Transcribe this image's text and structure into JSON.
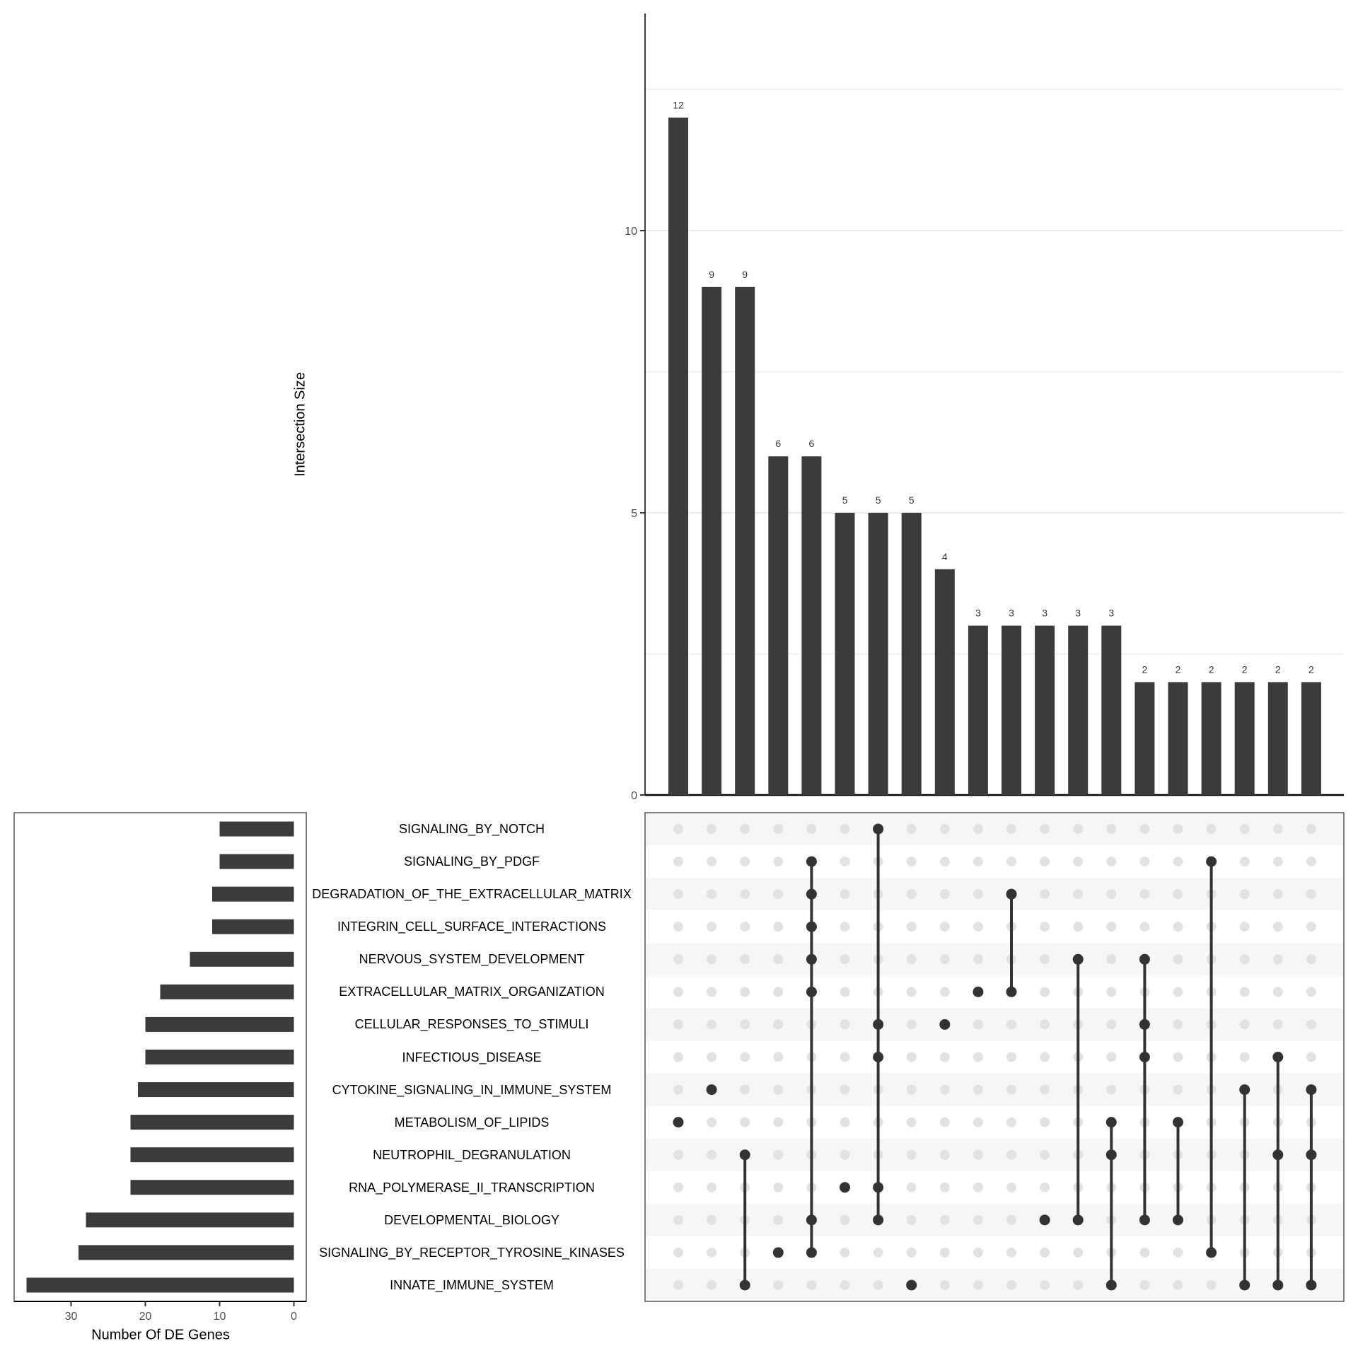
{
  "chart_data": {
    "type": "upset",
    "title": "",
    "top_bar": {
      "type": "bar",
      "ylabel": "Intersection Size",
      "ylim": [
        0,
        13.5
      ],
      "yticks": [
        0,
        5,
        10
      ],
      "grid": true,
      "values": [
        12,
        9,
        9,
        6,
        6,
        5,
        5,
        5,
        4,
        3,
        3,
        3,
        3,
        3,
        2,
        2,
        2,
        2,
        2,
        2
      ],
      "value_labels": [
        "12",
        "9",
        "9",
        "6",
        "6",
        "5",
        "5",
        "5",
        "4",
        "3",
        "3",
        "3",
        "3",
        "3",
        "2",
        "2",
        "2",
        "2",
        "2",
        "2"
      ]
    },
    "set_size_bar": {
      "type": "bar",
      "orientation": "horizontal-reversed",
      "xlabel": "Number Of DE Genes",
      "xticks": [
        30,
        20,
        10,
        0
      ],
      "xlim": [
        37,
        0
      ]
    },
    "sets": [
      {
        "name": "SIGNALING_BY_NOTCH",
        "size": 10
      },
      {
        "name": "SIGNALING_BY_PDGF",
        "size": 10
      },
      {
        "name": "DEGRADATION_OF_THE_EXTRACELLULAR_MATRIX",
        "size": 11
      },
      {
        "name": "INTEGRIN_CELL_SURFACE_INTERACTIONS",
        "size": 11
      },
      {
        "name": "NERVOUS_SYSTEM_DEVELOPMENT",
        "size": 14
      },
      {
        "name": "EXTRACELLULAR_MATRIX_ORGANIZATION",
        "size": 18
      },
      {
        "name": "CELLULAR_RESPONSES_TO_STIMULI",
        "size": 20
      },
      {
        "name": "INFECTIOUS_DISEASE",
        "size": 20
      },
      {
        "name": "CYTOKINE_SIGNALING_IN_IMMUNE_SYSTEM",
        "size": 21
      },
      {
        "name": "METABOLISM_OF_LIPIDS",
        "size": 22
      },
      {
        "name": "NEUTROPHIL_DEGRANULATION",
        "size": 22
      },
      {
        "name": "RNA_POLYMERASE_II_TRANSCRIPTION",
        "size": 22
      },
      {
        "name": "DEVELOPMENTAL_BIOLOGY",
        "size": 28
      },
      {
        "name": "SIGNALING_BY_RECEPTOR_TYROSINE_KINASES",
        "size": 29
      },
      {
        "name": "INNATE_IMMUNE_SYSTEM",
        "size": 36
      }
    ],
    "intersections": [
      {
        "size": 12,
        "sets": [
          9
        ]
      },
      {
        "size": 9,
        "sets": [
          8
        ]
      },
      {
        "size": 9,
        "sets": [
          10,
          14
        ]
      },
      {
        "size": 6,
        "sets": [
          13
        ]
      },
      {
        "size": 6,
        "sets": [
          1,
          2,
          3,
          4,
          5,
          12,
          13
        ]
      },
      {
        "size": 5,
        "sets": [
          11
        ]
      },
      {
        "size": 5,
        "sets": [
          0,
          6,
          7,
          11,
          12
        ]
      },
      {
        "size": 5,
        "sets": [
          14
        ]
      },
      {
        "size": 4,
        "sets": [
          6
        ]
      },
      {
        "size": 3,
        "sets": [
          5
        ]
      },
      {
        "size": 3,
        "sets": [
          2,
          5
        ]
      },
      {
        "size": 3,
        "sets": [
          12
        ]
      },
      {
        "size": 3,
        "sets": [
          4,
          12
        ]
      },
      {
        "size": 3,
        "sets": [
          9,
          10,
          14
        ]
      },
      {
        "size": 2,
        "sets": [
          4,
          6,
          7,
          12
        ]
      },
      {
        "size": 2,
        "sets": [
          9,
          12
        ]
      },
      {
        "size": 2,
        "sets": [
          1,
          13
        ]
      },
      {
        "size": 2,
        "sets": [
          8,
          14
        ]
      },
      {
        "size": 2,
        "sets": [
          7,
          10,
          14
        ]
      },
      {
        "size": 2,
        "sets": [
          8,
          10,
          14
        ]
      }
    ],
    "colors": {
      "bar": "#3b3b3b",
      "dot_active": "#333333",
      "dot_inactive": "#e2e2e2",
      "stripe": "#f6f6f6",
      "grid": "#ebebeb"
    }
  },
  "labels": {
    "y_axis_title": "Intersection Size",
    "x_axis_title": "Number Of DE Genes"
  }
}
